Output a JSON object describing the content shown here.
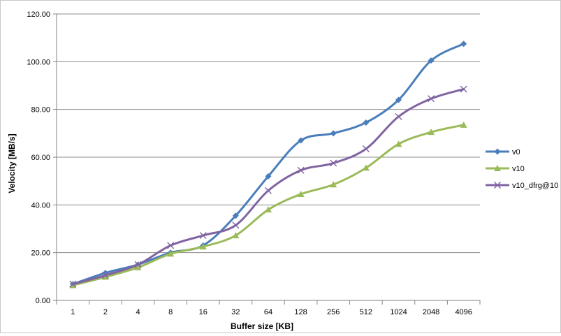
{
  "chart_data": {
    "type": "line",
    "title": "",
    "xlabel": "Buffer size [KB]",
    "ylabel": "Velocity [MB/s]",
    "categories": [
      "1",
      "2",
      "4",
      "8",
      "16",
      "32",
      "64",
      "128",
      "256",
      "512",
      "1024",
      "2048",
      "4096"
    ],
    "ylim": [
      0,
      120
    ],
    "yticks": [
      "0.00",
      "20.00",
      "40.00",
      "60.00",
      "80.00",
      "100.00",
      "120.00"
    ],
    "grid": true,
    "legend": "right",
    "series": [
      {
        "name": "v0",
        "color": "#4a7ebb",
        "marker": "diamond",
        "values": [
          6.8,
          11.5,
          15.0,
          20.0,
          23.0,
          35.5,
          52.0,
          67.0,
          70.0,
          74.5,
          84.0,
          100.5,
          107.5
        ]
      },
      {
        "name": "v10",
        "color": "#9bbb59",
        "marker": "triangle",
        "values": [
          6.3,
          9.8,
          13.8,
          19.5,
          22.5,
          27.2,
          38.0,
          44.5,
          48.5,
          55.5,
          65.5,
          70.5,
          73.5
        ]
      },
      {
        "name": "v10_dfrg@10",
        "color": "#8064a2",
        "marker": "x",
        "values": [
          6.8,
          10.5,
          15.0,
          23.0,
          27.2,
          31.5,
          46.0,
          54.5,
          57.5,
          63.5,
          77.0,
          84.5,
          88.5
        ]
      }
    ]
  }
}
